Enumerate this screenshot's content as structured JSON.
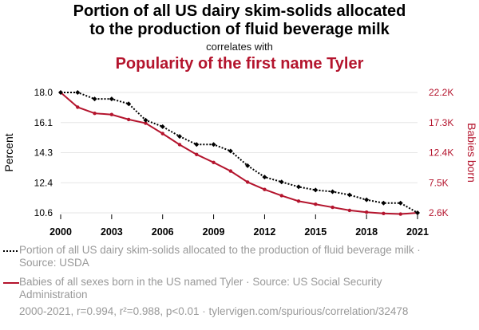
{
  "header": {
    "title_line1": "Portion of all US dairy skim-solids allocated",
    "title_line2": "to the production of fluid beverage milk",
    "subtitle": "correlates with",
    "title2": "Popularity of the first name Tyler"
  },
  "legend": {
    "series1": "Portion of all US dairy skim-solids allocated to the production of fluid beverage milk · Source: USDA",
    "series2": "Babies of all sexes born in the US named Tyler · Source: US Social Security Administration"
  },
  "footer": "2000-2021, r=0.994, r²=0.988, p<0.01 · tylervigen.com/spurious/correlation/32478",
  "colors": {
    "series1": "#000000",
    "series2": "#b4142d",
    "grid": "#e6e6e6",
    "muted": "#999999"
  },
  "chart_data": {
    "type": "line",
    "x": [
      2000,
      2001,
      2002,
      2003,
      2004,
      2005,
      2006,
      2007,
      2008,
      2009,
      2010,
      2011,
      2012,
      2013,
      2014,
      2015,
      2016,
      2017,
      2018,
      2019,
      2020,
      2021
    ],
    "x_ticks": [
      "2000",
      "2003",
      "2006",
      "2009",
      "2012",
      "2015",
      "2018",
      "2021"
    ],
    "y_left": {
      "label": "Percent",
      "ticks": [
        "18.0",
        "16.1",
        "14.3",
        "12.4",
        "10.6"
      ],
      "range": [
        10.6,
        18.0
      ]
    },
    "y_right": {
      "label": "Babies born",
      "ticks": [
        "22.2K",
        "17.3K",
        "12.4K",
        "7.5K",
        "2.6K"
      ],
      "range": [
        2.6,
        22.2
      ],
      "unit": "thousands"
    },
    "series": [
      {
        "name": "Portion of all US dairy skim-solids allocated to the production of fluid beverage milk",
        "axis": "left",
        "style": "dotted-diamond",
        "values": [
          18.0,
          18.0,
          17.6,
          17.6,
          17.3,
          16.3,
          15.9,
          15.3,
          14.8,
          14.8,
          14.4,
          13.5,
          12.8,
          12.5,
          12.2,
          12.0,
          11.9,
          11.7,
          11.4,
          11.2,
          11.2,
          10.6
        ]
      },
      {
        "name": "Babies of all sexes born in the US named Tyler",
        "axis": "right",
        "style": "solid-dot",
        "values": [
          22.2,
          19.8,
          18.8,
          18.6,
          17.8,
          17.2,
          15.5,
          13.7,
          12.1,
          10.8,
          9.4,
          7.6,
          6.4,
          5.4,
          4.5,
          4.0,
          3.5,
          3.0,
          2.7,
          2.5,
          2.4,
          2.6
        ]
      }
    ],
    "grid": "horizontal",
    "legend_position": "bottom"
  }
}
